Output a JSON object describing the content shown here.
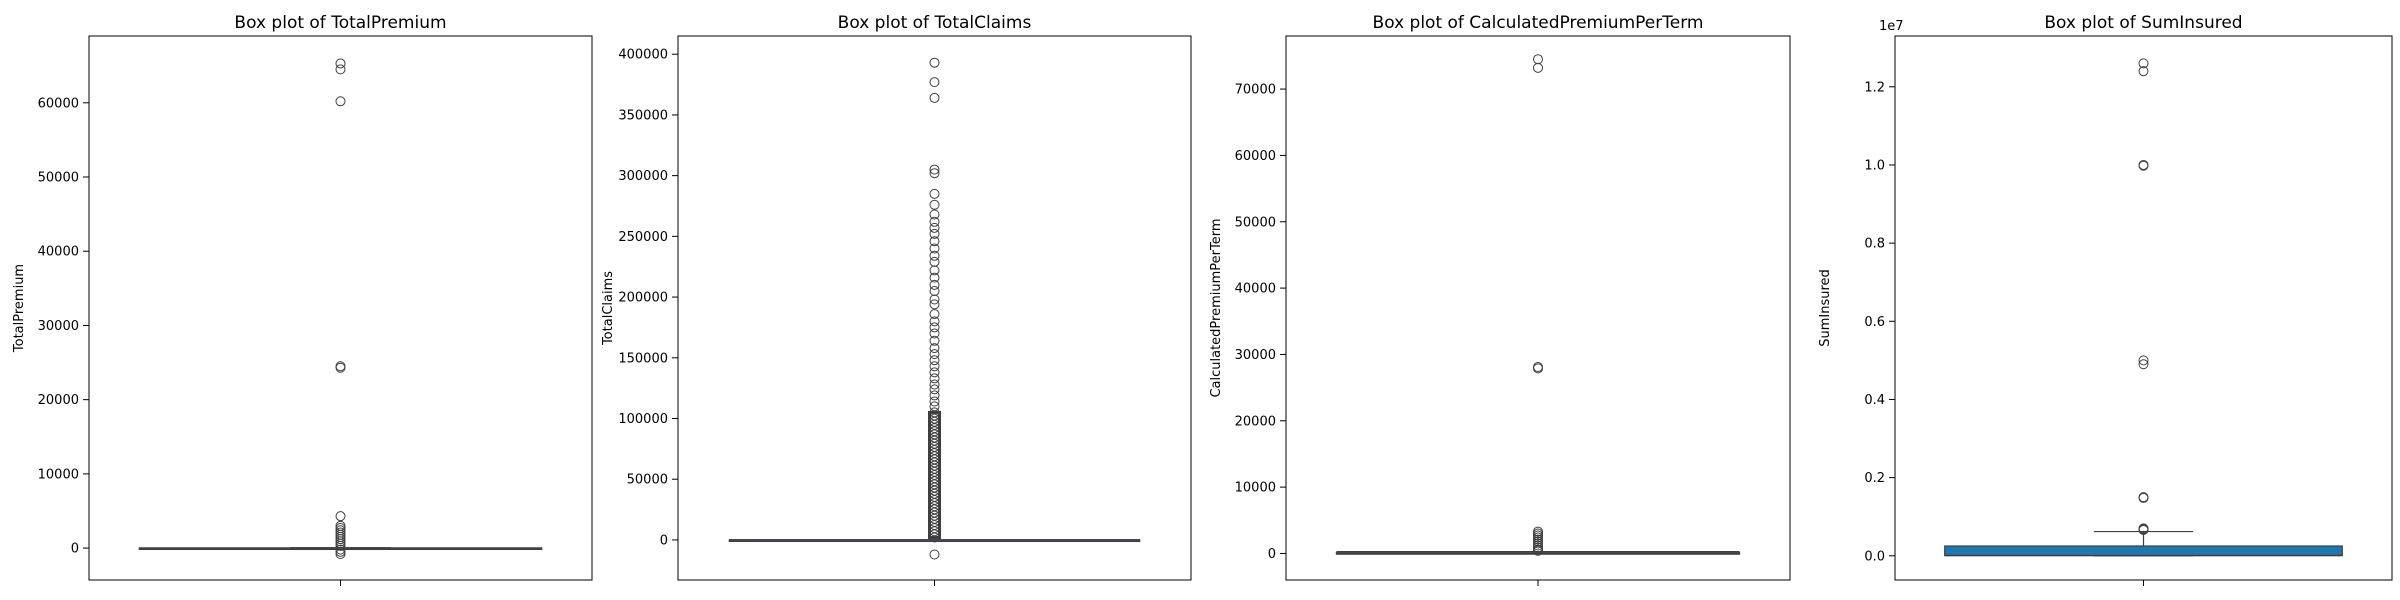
{
  "chart_data": [
    {
      "type": "box",
      "title": "Box plot of TotalPremium",
      "ylabel": "TotalPremium",
      "xlabel": "",
      "ylim": [
        -4300,
        69000
      ],
      "yticks": [
        0,
        10000,
        20000,
        30000,
        40000,
        50000,
        60000
      ],
      "tick_labels": [
        "0",
        "10000",
        "20000",
        "30000",
        "40000",
        "50000",
        "60000"
      ],
      "offset_label": "",
      "color": "#1f77b4",
      "box": {
        "q1": 0,
        "median": 0,
        "q3": 20,
        "whisker_low": 0,
        "whisker_high": 50
      },
      "whisker_span": "narrow",
      "outliers": [
        65300,
        64500,
        60200,
        24500,
        24300,
        4300,
        3000,
        2700,
        2400,
        2100,
        1800,
        1500,
        1200,
        900,
        600,
        300,
        -200,
        -500,
        -800
      ]
    },
    {
      "type": "box",
      "title": "Box plot of TotalClaims",
      "ylabel": "TotalClaims",
      "xlabel": "",
      "ylim": [
        -33000,
        415000
      ],
      "yticks": [
        0,
        50000,
        100000,
        150000,
        200000,
        250000,
        300000,
        350000,
        400000
      ],
      "tick_labels": [
        "0",
        "50000",
        "100000",
        "150000",
        "200000",
        "250000",
        "300000",
        "350000",
        "400000"
      ],
      "offset_label": "",
      "color": "#1f77b4",
      "box": {
        "q1": 0,
        "median": 0,
        "q3": 0,
        "whisker_low": 0,
        "whisker_high": 0
      },
      "whisker_span": "wide",
      "outlier_band": [
        2000,
        105000
      ],
      "outliers": [
        393000,
        377000,
        364000,
        305000,
        302000,
        285000,
        276000,
        268000,
        262000,
        257000,
        252000,
        246000,
        240000,
        234000,
        229000,
        222000,
        216000,
        210000,
        205000,
        198000,
        194000,
        186000,
        180000,
        175000,
        170000,
        164000,
        158000,
        153000,
        148000,
        143000,
        138000,
        133000,
        128000,
        124000,
        119000,
        114000,
        110000,
        -12000
      ]
    },
    {
      "type": "box",
      "title": "Box plot of CalculatedPremiumPerTerm",
      "ylabel": "CalculatedPremiumPerTerm",
      "xlabel": "",
      "ylim": [
        -4000,
        78000
      ],
      "yticks": [
        0,
        10000,
        20000,
        30000,
        40000,
        50000,
        60000,
        70000
      ],
      "tick_labels": [
        "0",
        "10000",
        "20000",
        "30000",
        "40000",
        "50000",
        "60000",
        "70000"
      ],
      "offset_label": "",
      "color": "#1f77b4",
      "box": {
        "q1": 5,
        "median": 30,
        "q3": 120,
        "whisker_low": 0,
        "whisker_high": 290
      },
      "whisker_span": "wide",
      "outliers": [
        74500,
        73200,
        28100,
        27900,
        3300,
        3000,
        2700,
        2400,
        2100,
        1800,
        1500,
        1200,
        900,
        600,
        400
      ]
    },
    {
      "type": "box",
      "title": "Box plot of SumInsured",
      "ylabel": "SumInsured",
      "xlabel": "",
      "ylim": [
        -620000,
        13300000
      ],
      "yticks": [
        0,
        2000000,
        4000000,
        6000000,
        8000000,
        10000000,
        12000000
      ],
      "tick_labels": [
        "0.0",
        "0.2",
        "0.4",
        "0.6",
        "0.8",
        "1.0",
        "1.2"
      ],
      "offset_label": "1e7",
      "color": "#1f77b4",
      "box": {
        "q1": 5000,
        "median": 7500,
        "q3": 250000,
        "whisker_low": 0,
        "whisker_high": 620000
      },
      "whisker_span": "narrow",
      "outliers": [
        12600000,
        12400000,
        10000000,
        9980000,
        5000000,
        4900000,
        1500000,
        1480000,
        700000,
        680000,
        660000
      ]
    }
  ]
}
